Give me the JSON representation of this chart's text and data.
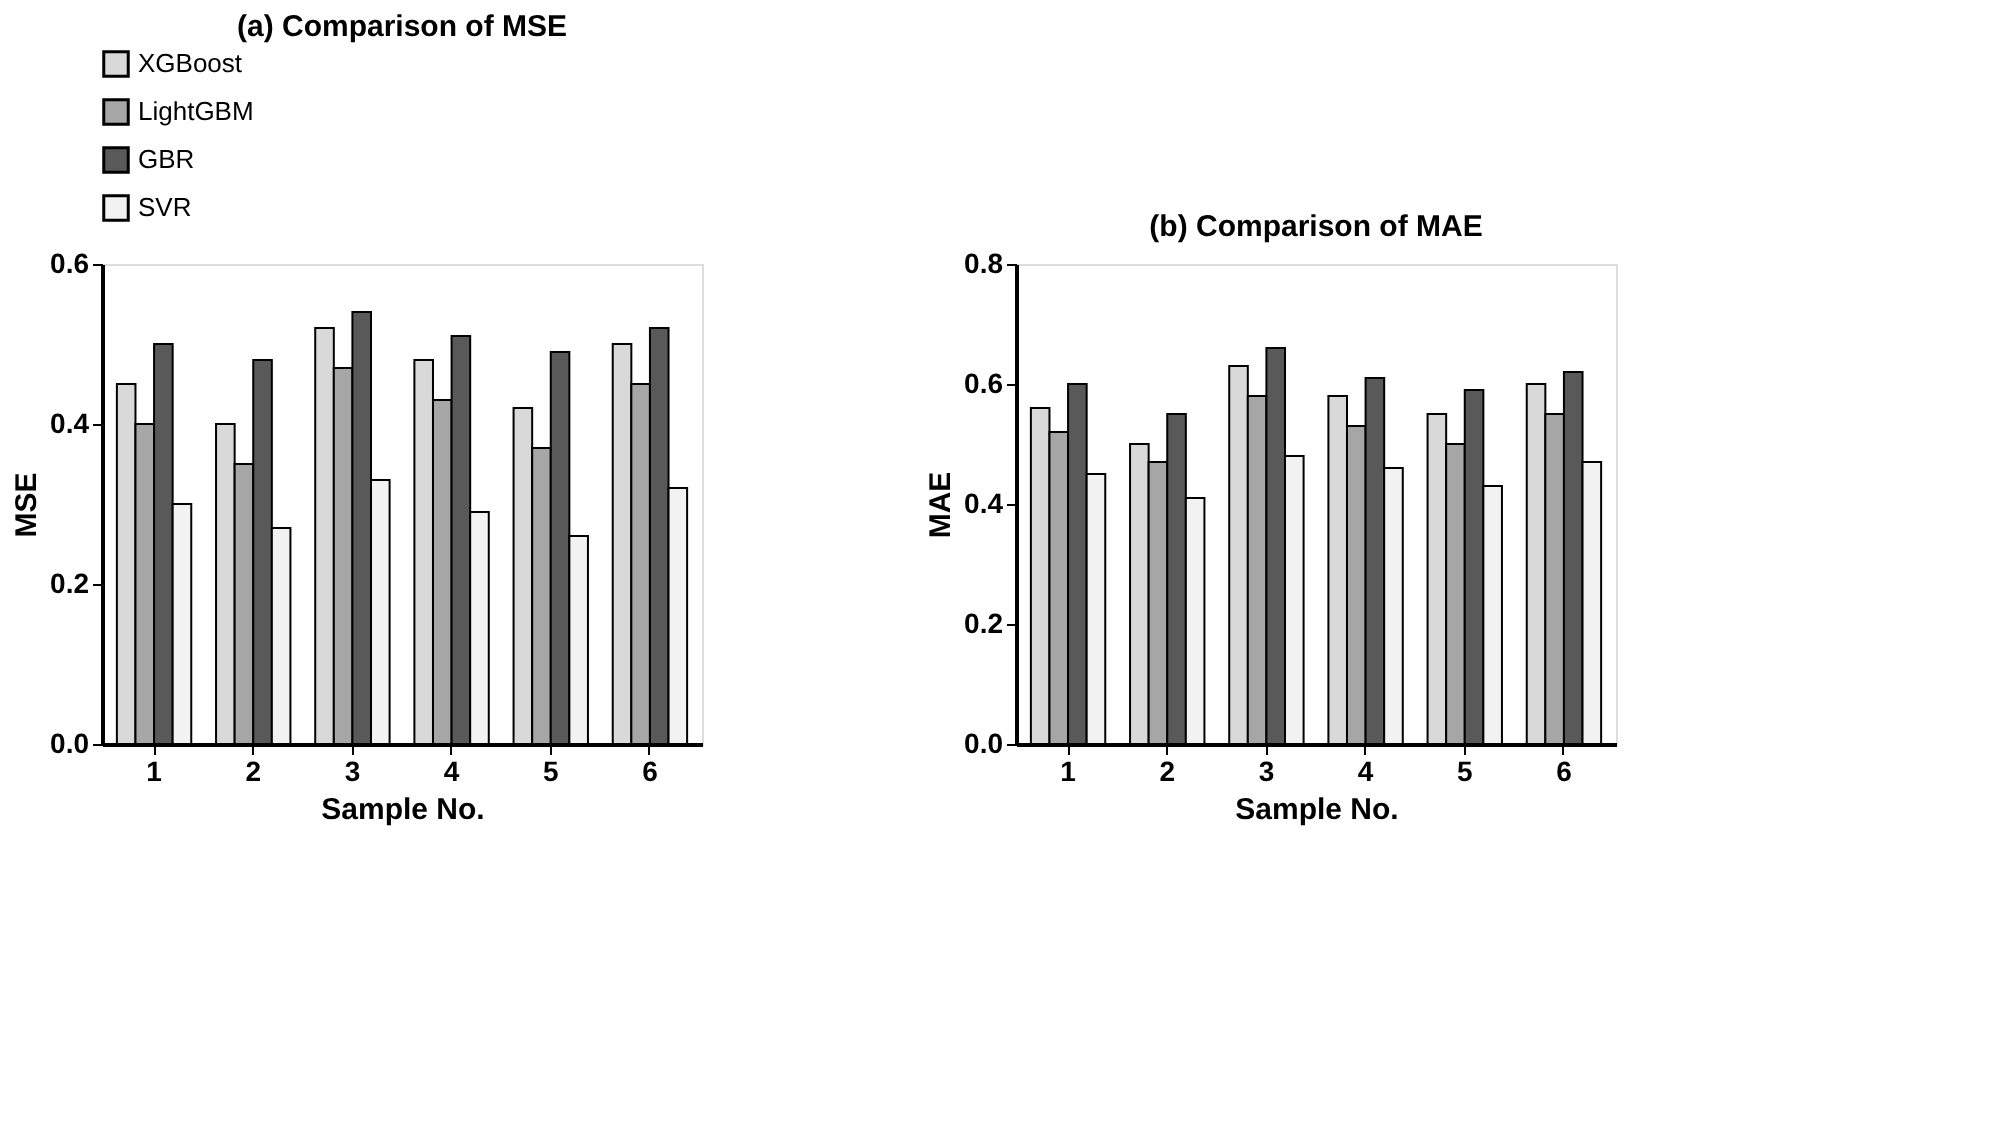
{
  "chart_data": [
    {
      "type": "bar",
      "title": "(a) Comparison of MSE",
      "xlabel": "Sample No.",
      "ylabel": "MSE",
      "categories": [
        "1",
        "2",
        "3",
        "4",
        "5",
        "6"
      ],
      "series": [
        {
          "name": "XGBoost",
          "color": "#d9d9d9",
          "values": [
            0.45,
            0.4,
            0.52,
            0.48,
            0.42,
            0.5
          ]
        },
        {
          "name": "LightGBM",
          "color": "#a6a6a6",
          "values": [
            0.4,
            0.35,
            0.47,
            0.43,
            0.37,
            0.45
          ]
        },
        {
          "name": "GBR",
          "color": "#595959",
          "values": [
            0.5,
            0.48,
            0.54,
            0.51,
            0.49,
            0.52
          ]
        },
        {
          "name": "SVR",
          "color": "#f2f2f2",
          "values": [
            0.3,
            0.27,
            0.33,
            0.29,
            0.26,
            0.32
          ]
        }
      ],
      "ylim": [
        0,
        0.6
      ],
      "yticks": [
        {
          "value": 0,
          "label": "0.0"
        },
        0.2,
        0.4,
        0.6
      ],
      "legend": "top",
      "grid": false
    },
    {
      "type": "bar",
      "title": "(b) Comparison of MAE",
      "xlabel": "Sample No.",
      "ylabel": "MAE",
      "categories": [
        "1",
        "2",
        "3",
        "4",
        "5",
        "6"
      ],
      "series": [
        {
          "color": "#d9d9d9",
          "values": [
            0.56,
            0.5,
            0.63,
            0.58,
            0.55,
            0.6
          ]
        },
        {
          "color": "#a6a6a6",
          "values": [
            0.52,
            0.47,
            0.58,
            0.53,
            0.5,
            0.55
          ]
        },
        {
          "color": "#595959",
          "values": [
            0.6,
            0.55,
            0.66,
            0.61,
            0.59,
            0.62
          ]
        },
        {
          "color": "#f2f2f2",
          "values": [
            0.45,
            0.41,
            0.48,
            0.46,
            0.43,
            0.47
          ]
        }
      ],
      "ylim": [
        0,
        0.8
      ],
      "yticks": [
        {
          "value": 0,
          "label": "0.0"
        },
        0.2,
        0.4,
        0.6,
        0.8
      ],
      "grid": false
    }
  ]
}
